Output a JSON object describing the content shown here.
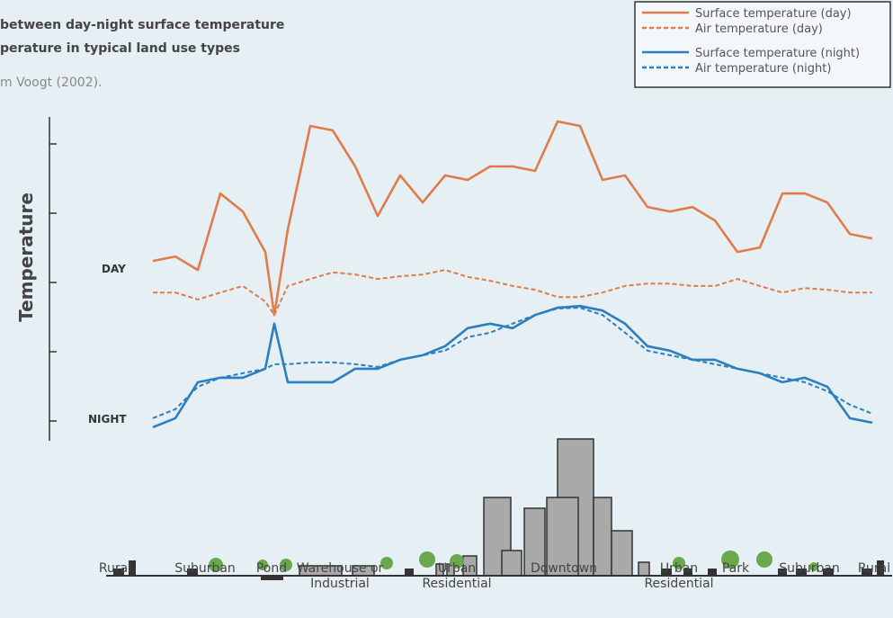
{
  "chart_data": {
    "type": "line",
    "title": [
      "between day-night surface temperature",
      "perature in typical land use types"
    ],
    "source": "m Voogt (2002).",
    "y_label": "Temperature",
    "annotations": [
      "DAY",
      "NIGHT"
    ],
    "land_uses": [
      "Rural",
      "Suburban",
      "Pond",
      "Warehouse or Industrial",
      "Urban Residential",
      "Downtown",
      "Urban Residential",
      "Park",
      "Suburban",
      "Rural"
    ],
    "x": [
      0,
      1,
      2,
      3,
      4,
      5,
      5.4,
      6,
      7,
      8,
      9,
      10,
      11,
      12,
      13,
      14,
      15,
      16,
      17,
      18,
      19,
      20,
      21,
      22,
      23,
      24,
      25,
      26,
      27,
      28,
      29,
      30,
      31,
      32
    ],
    "xlim": [
      0,
      32
    ],
    "ylim": [
      0,
      100
    ],
    "yticks": [
      10,
      30,
      50,
      70,
      90
    ],
    "series": [
      {
        "name": "Surface temperature (day)",
        "color": "#e07b4a",
        "dashed": false,
        "values": [
          56.2,
          57.5,
          53.6,
          75.7,
          70.5,
          58.8,
          40.6,
          65.3,
          95.2,
          93.9,
          83.5,
          69.2,
          80.9,
          73.1,
          80.9,
          79.6,
          83.5,
          83.5,
          82.2,
          96.5,
          95.2,
          79.6,
          80.9,
          71.8,
          70.5,
          71.8,
          67.9,
          58.8,
          60.1,
          75.7,
          75.7,
          73.1,
          64.0,
          62.7
        ]
      },
      {
        "name": "Air temperature (day)",
        "color": "#e07b4a",
        "dashed": true,
        "values": [
          47.1,
          47.1,
          45.1,
          47.1,
          49.0,
          44.5,
          40.6,
          49.0,
          51.0,
          52.9,
          52.3,
          51.0,
          51.8,
          52.3,
          53.6,
          51.6,
          50.5,
          49.0,
          47.9,
          45.8,
          45.8,
          47.1,
          49.0,
          49.7,
          49.7,
          49.0,
          49.0,
          51.0,
          49.0,
          47.1,
          48.4,
          47.9,
          47.1,
          47.1
        ]
      },
      {
        "name": "Surface temperature (night)",
        "color": "#2b7fc0",
        "dashed": false,
        "values": [
          8.2,
          10.8,
          21.2,
          22.5,
          22.5,
          25.1,
          38.1,
          21.2,
          21.2,
          21.2,
          25.1,
          25.1,
          27.7,
          29.0,
          31.6,
          36.8,
          38.1,
          36.8,
          40.6,
          42.7,
          43.2,
          41.9,
          38.1,
          31.6,
          30.3,
          27.7,
          27.7,
          25.1,
          23.8,
          21.2,
          22.5,
          19.9,
          10.8,
          9.5
        ]
      },
      {
        "name": "Air temperature (night)",
        "color": "#2b7fc0",
        "dashed": true,
        "values": [
          10.8,
          13.4,
          19.9,
          22.5,
          23.8,
          25.1,
          26.4,
          26.4,
          26.9,
          26.9,
          26.4,
          25.6,
          27.7,
          29.0,
          30.3,
          34.2,
          35.5,
          38.1,
          40.6,
          42.5,
          42.7,
          40.6,
          35.5,
          30.3,
          29.0,
          27.7,
          26.4,
          25.1,
          23.8,
          22.5,
          21.2,
          18.6,
          14.7,
          12.1
        ]
      }
    ]
  }
}
